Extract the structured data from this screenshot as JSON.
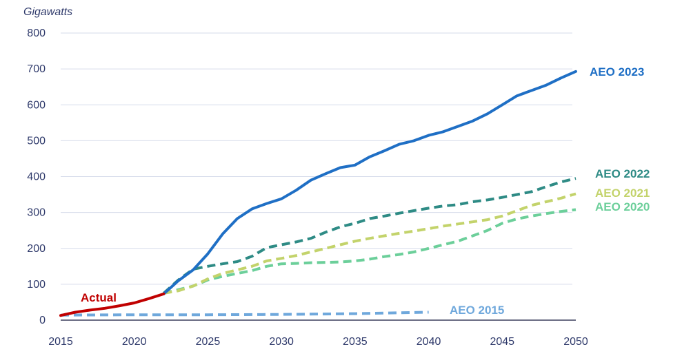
{
  "chart_data": {
    "type": "line",
    "unit_label": "Gigawatts",
    "title": "",
    "xlabel": "",
    "ylabel": "Gigawatts",
    "xlim": [
      2015,
      2050
    ],
    "ylim": [
      0,
      800
    ],
    "x_ticks": [
      "2015",
      "2020",
      "2025",
      "2030",
      "2035",
      "2040",
      "2045",
      "2050"
    ],
    "y_ticks": [
      "0",
      "100",
      "200",
      "300",
      "400",
      "500",
      "600",
      "700",
      "800"
    ],
    "grid": "horizontal",
    "series": [
      {
        "name": "Actual",
        "color": "#c00000",
        "style": "solid",
        "points": [
          [
            2015,
            13
          ],
          [
            2016,
            22
          ],
          [
            2017,
            28
          ],
          [
            2018,
            33
          ],
          [
            2019,
            40
          ],
          [
            2020,
            48
          ],
          [
            2021,
            60
          ],
          [
            2022,
            73
          ]
        ]
      },
      {
        "name": "AEO 2015",
        "color": "#6fa8dc",
        "style": "dashed",
        "points": [
          [
            2015,
            14
          ],
          [
            2020,
            15
          ],
          [
            2025,
            15
          ],
          [
            2030,
            16
          ],
          [
            2035,
            18
          ],
          [
            2040,
            22
          ]
        ]
      },
      {
        "name": "AEO 2020",
        "color": "#6ccf9a",
        "style": "dashed",
        "points": [
          [
            2022,
            75
          ],
          [
            2023,
            85
          ],
          [
            2024,
            95
          ],
          [
            2025,
            112
          ],
          [
            2026,
            122
          ],
          [
            2027,
            130
          ],
          [
            2028,
            138
          ],
          [
            2029,
            150
          ],
          [
            2030,
            157
          ],
          [
            2031,
            158
          ],
          [
            2032,
            160
          ],
          [
            2033,
            161
          ],
          [
            2034,
            162
          ],
          [
            2035,
            165
          ],
          [
            2036,
            170
          ],
          [
            2037,
            177
          ],
          [
            2038,
            183
          ],
          [
            2039,
            190
          ],
          [
            2040,
            200
          ],
          [
            2041,
            210
          ],
          [
            2042,
            220
          ],
          [
            2043,
            235
          ],
          [
            2044,
            250
          ],
          [
            2045,
            270
          ],
          [
            2046,
            282
          ],
          [
            2047,
            290
          ],
          [
            2048,
            297
          ],
          [
            2049,
            303
          ],
          [
            2050,
            308
          ]
        ]
      },
      {
        "name": "AEO 2021",
        "color": "#c3d36b",
        "style": "dashed",
        "points": [
          [
            2022,
            75
          ],
          [
            2023,
            82
          ],
          [
            2024,
            95
          ],
          [
            2025,
            115
          ],
          [
            2026,
            130
          ],
          [
            2027,
            140
          ],
          [
            2028,
            150
          ],
          [
            2029,
            165
          ],
          [
            2030,
            172
          ],
          [
            2031,
            180
          ],
          [
            2032,
            190
          ],
          [
            2033,
            200
          ],
          [
            2034,
            210
          ],
          [
            2035,
            220
          ],
          [
            2036,
            228
          ],
          [
            2037,
            235
          ],
          [
            2038,
            242
          ],
          [
            2039,
            248
          ],
          [
            2040,
            255
          ],
          [
            2041,
            262
          ],
          [
            2042,
            268
          ],
          [
            2043,
            274
          ],
          [
            2044,
            280
          ],
          [
            2045,
            290
          ],
          [
            2046,
            305
          ],
          [
            2047,
            320
          ],
          [
            2048,
            330
          ],
          [
            2049,
            340
          ],
          [
            2050,
            352
          ]
        ]
      },
      {
        "name": "AEO 2022",
        "color": "#2e8b85",
        "style": "dashed",
        "points": [
          [
            2022,
            75
          ],
          [
            2023,
            112
          ],
          [
            2024,
            142
          ],
          [
            2025,
            150
          ],
          [
            2026,
            157
          ],
          [
            2027,
            163
          ],
          [
            2028,
            178
          ],
          [
            2029,
            202
          ],
          [
            2030,
            210
          ],
          [
            2031,
            218
          ],
          [
            2032,
            228
          ],
          [
            2033,
            245
          ],
          [
            2034,
            260
          ],
          [
            2035,
            270
          ],
          [
            2036,
            283
          ],
          [
            2037,
            290
          ],
          [
            2038,
            298
          ],
          [
            2039,
            305
          ],
          [
            2040,
            312
          ],
          [
            2041,
            318
          ],
          [
            2042,
            322
          ],
          [
            2043,
            330
          ],
          [
            2044,
            335
          ],
          [
            2045,
            342
          ],
          [
            2046,
            350
          ],
          [
            2047,
            358
          ],
          [
            2048,
            372
          ],
          [
            2049,
            385
          ],
          [
            2050,
            395
          ]
        ]
      },
      {
        "name": "AEO 2023",
        "color": "#1f6fc5",
        "style": "solid",
        "points": [
          [
            2022,
            73
          ],
          [
            2023,
            110
          ],
          [
            2024,
            140
          ],
          [
            2025,
            185
          ],
          [
            2026,
            240
          ],
          [
            2027,
            283
          ],
          [
            2028,
            310
          ],
          [
            2029,
            325
          ],
          [
            2030,
            338
          ],
          [
            2031,
            362
          ],
          [
            2032,
            390
          ],
          [
            2033,
            408
          ],
          [
            2034,
            425
          ],
          [
            2035,
            432
          ],
          [
            2036,
            455
          ],
          [
            2037,
            472
          ],
          [
            2038,
            490
          ],
          [
            2039,
            500
          ],
          [
            2040,
            515
          ],
          [
            2041,
            525
          ],
          [
            2042,
            540
          ],
          [
            2043,
            555
          ],
          [
            2044,
            575
          ],
          [
            2045,
            600
          ],
          [
            2046,
            625
          ],
          [
            2047,
            640
          ],
          [
            2048,
            655
          ],
          [
            2049,
            675
          ],
          [
            2050,
            693
          ]
        ]
      }
    ]
  }
}
